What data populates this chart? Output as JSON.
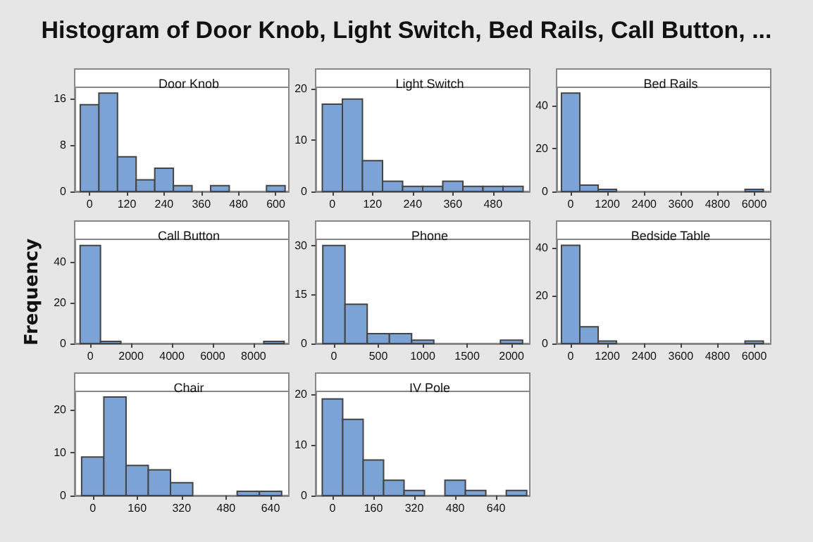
{
  "chart_data": [
    {
      "type": "histogram",
      "title": "Door Knob",
      "annotations": [
        "Histogram of Door Knob, Light Switch, Bed Rails, Call Button, ..."
      ],
      "bins": [
        -30,
        30,
        90,
        150,
        210,
        270,
        330,
        390,
        450,
        510,
        570,
        630
      ],
      "values": [
        15,
        17,
        6,
        2,
        4,
        1,
        0,
        1,
        0,
        0,
        1
      ],
      "color": "#7ba3d6",
      "xlim": [
        -48,
        642
      ],
      "xticks": [
        0,
        120,
        240,
        360,
        480,
        600
      ],
      "ylim": [
        0,
        18
      ],
      "yticks": [
        0,
        8,
        16
      ]
    },
    {
      "type": "histogram",
      "title": "Light Switch",
      "bins": [
        -30,
        30,
        90,
        150,
        210,
        270,
        330,
        390,
        450,
        510,
        570
      ],
      "values": [
        17,
        18,
        6,
        2,
        1,
        1,
        2,
        1,
        1,
        1
      ],
      "color": "#7ba3d6",
      "xlim": [
        -50,
        590
      ],
      "xticks": [
        0,
        120,
        240,
        360,
        480
      ],
      "ylim": [
        0,
        20.3
      ],
      "yticks": [
        0,
        10,
        20
      ]
    },
    {
      "type": "histogram",
      "title": "Bed Rails",
      "bins": [
        -300,
        300,
        900,
        1500,
        2100,
        2700,
        3300,
        3900,
        4500,
        5100,
        5700,
        6300
      ],
      "values": [
        46,
        3,
        1,
        0,
        0,
        0,
        0,
        0,
        0,
        0,
        1
      ],
      "color": "#7ba3d6",
      "xlim": [
        -460,
        6540
      ],
      "xticks": [
        0,
        1200,
        2400,
        3600,
        4800,
        6000
      ],
      "ylim": [
        0,
        48.7
      ],
      "yticks": [
        0,
        20,
        40
      ]
    },
    {
      "type": "histogram",
      "title": "Call Button",
      "ylabel": "Frequency",
      "bins": [
        -500,
        500,
        1500,
        2500,
        3500,
        4500,
        5500,
        6500,
        7500,
        8500,
        9500
      ],
      "values": [
        48,
        1,
        0,
        0,
        0,
        0,
        0,
        0,
        0,
        1
      ],
      "color": "#7ba3d6",
      "xlim": [
        -765,
        9730
      ],
      "xticks": [
        0,
        2000,
        4000,
        6000,
        8000
      ],
      "ylim": [
        0,
        51
      ],
      "yticks": [
        0,
        20,
        40
      ]
    },
    {
      "type": "histogram",
      "title": "Phone",
      "bins": [
        -125,
        125,
        375,
        625,
        875,
        1125,
        1375,
        1625,
        1875,
        2125
      ],
      "values": [
        30,
        12,
        3,
        3,
        1,
        0,
        0,
        0,
        1
      ],
      "color": "#7ba3d6",
      "xlim": [
        -206,
        2206
      ],
      "xticks": [
        0,
        500,
        1000,
        1500,
        2000
      ],
      "ylim": [
        0,
        31.9
      ],
      "yticks": [
        0,
        15,
        30
      ]
    },
    {
      "type": "histogram",
      "title": "Bedside Table",
      "bins": [
        -300,
        300,
        900,
        1500,
        2100,
        2700,
        3300,
        3900,
        4500,
        5100,
        5700,
        6300
      ],
      "values": [
        41,
        7,
        1,
        0,
        0,
        0,
        0,
        0,
        0,
        0,
        1
      ],
      "color": "#7ba3d6",
      "xlim": [
        -460,
        6540
      ],
      "xticks": [
        0,
        1200,
        2400,
        3600,
        4800,
        6000
      ],
      "ylim": [
        0,
        43.5
      ],
      "yticks": [
        0,
        20,
        40
      ]
    },
    {
      "type": "histogram",
      "title": "Chair",
      "bins": [
        -40,
        40,
        120,
        200,
        280,
        360,
        440,
        520,
        600,
        680
      ],
      "values": [
        9,
        23,
        7,
        6,
        3,
        0,
        0,
        1,
        1
      ],
      "color": "#7ba3d6",
      "xlim": [
        -65,
        706
      ],
      "xticks": [
        0,
        160,
        320,
        480,
        640
      ],
      "ylim": [
        0,
        24.3
      ],
      "yticks": [
        0,
        10,
        20
      ]
    },
    {
      "type": "histogram",
      "title": "IV Pole",
      "bins": [
        -40,
        40,
        120,
        200,
        280,
        360,
        440,
        520,
        600,
        680,
        760
      ],
      "values": [
        19,
        15,
        7,
        3,
        1,
        0,
        3,
        1,
        0,
        1
      ],
      "color": "#7ba3d6",
      "xlim": [
        -66,
        772
      ],
      "xticks": [
        0,
        160,
        320,
        480,
        640
      ],
      "ylim": [
        0,
        20.5
      ],
      "yticks": [
        0,
        10,
        20
      ]
    }
  ]
}
